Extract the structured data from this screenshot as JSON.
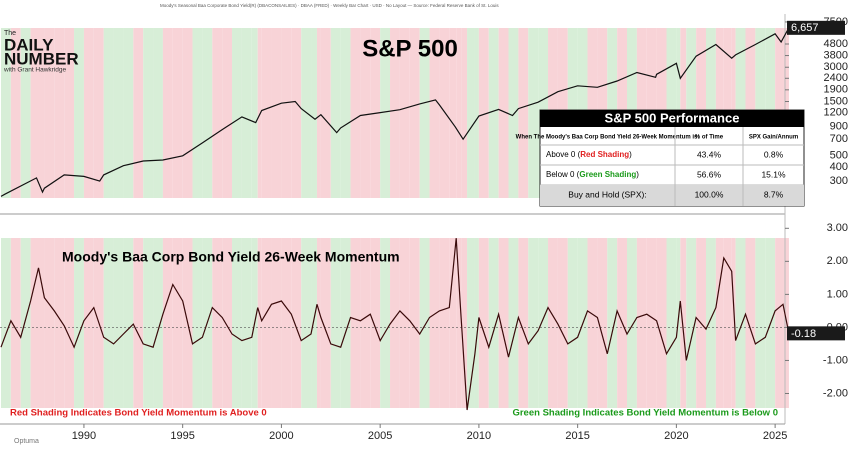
{
  "header": {
    "source": "Moody's Seasonal Baa Corporate Bond Yield(R) (DBACONSAILIES) · DBAA (FRED) · Weekly Bar Chart · USD · No Layout — Source: Federal Reserve Bank of St. Louis"
  },
  "logo": {
    "top": "The",
    "line1": "DAILY",
    "line2": "NUMBER",
    "tagline": "with Grant Hawkridge"
  },
  "watermark": "Optuma",
  "table": {
    "title": "S&P 500 Performance",
    "columns": [
      "When The Moody's Baa Corp Bond Yield 26-Week Momentum is:",
      "% of Time",
      "SPX Gain/Annum"
    ],
    "rows": [
      [
        {
          "pre": "Above 0 (",
          "hl": "Red Shading",
          "post": ")"
        },
        "43.4%",
        "0.8%"
      ],
      [
        {
          "pre": "Below 0 (",
          "hl": "Green Shading",
          "post": ")"
        },
        "56.6%",
        "15.1%"
      ],
      [
        "Buy and Hold (SPX):",
        "100.0%",
        "8.7%"
      ]
    ]
  },
  "chart_data": [
    {
      "type": "line",
      "title": "S&P 500",
      "log_scale": true,
      "xlim": [
        1985.75,
        2025.5
      ],
      "ylim": [
        185,
        7800
      ],
      "yticks": [
        7500,
        4800,
        3800,
        3000,
        2400,
        1900,
        1500,
        1200,
        900,
        700,
        500,
        400,
        300
      ],
      "series": [
        {
          "name": "S&P 500",
          "color": "#111111",
          "x": [
            1985.8,
            1986,
            1987.6,
            1987.9,
            1988,
            1989,
            1990,
            1990.8,
            1991,
            1992,
            1993,
            1994,
            1995,
            1996,
            1997,
            1998,
            1998.7,
            1999,
            2000,
            2000.7,
            2001,
            2001.7,
            2002,
            2002.8,
            2003,
            2004,
            2005,
            2006,
            2007,
            2007.8,
            2008,
            2008.8,
            2009.2,
            2010,
            2011,
            2011.7,
            2012,
            2013,
            2014,
            2015,
            2016,
            2017,
            2018,
            2018.95,
            2019,
            2020,
            2020.2,
            2021,
            2022,
            2022.8,
            2023,
            2024,
            2025,
            2025.3,
            2025.7
          ],
          "values": [
            220,
            230,
            320,
            240,
            260,
            340,
            330,
            300,
            340,
            410,
            450,
            460,
            500,
            650,
            850,
            1100,
            980,
            1250,
            1450,
            1500,
            1300,
            1050,
            1150,
            800,
            880,
            1130,
            1200,
            1270,
            1430,
            1550,
            1400,
            900,
            700,
            1120,
            1280,
            1130,
            1300,
            1480,
            1830,
            2060,
            2000,
            2270,
            2700,
            2450,
            2600,
            3250,
            2400,
            3750,
            4750,
            3600,
            3850,
            4750,
            5900,
            5000,
            6657
          ],
          "value_labels": [
            null,
            null,
            null,
            null,
            null,
            null,
            null,
            null,
            null,
            null,
            null,
            null,
            null,
            null,
            null,
            null,
            null,
            null,
            null,
            null,
            null,
            null,
            null,
            null,
            null,
            null,
            null,
            null,
            null,
            null,
            null,
            null,
            null,
            null,
            null,
            null,
            null,
            null,
            null,
            null,
            null,
            null,
            null,
            null,
            null,
            null,
            null,
            null,
            null,
            null,
            null,
            null,
            null,
            null,
            "6,657"
          ]
        }
      ]
    },
    {
      "type": "line",
      "title": "Moody's Baa Corp Bond Yield 26-Week Momentum",
      "xlim": [
        1985.75,
        2025.5
      ],
      "ylim": [
        -2.5,
        3.1
      ],
      "shade_above": "#f8d3d7",
      "shade_below": "#d7eed7",
      "annotations": [
        {
          "text": "Red Shading Indicates Bond Yield Momentum is Above 0",
          "color": "#e02020"
        },
        {
          "text": "Green Shading Indicates Bond Yield Momentum is Below 0",
          "color": "#1a9a1a"
        }
      ],
      "xticks": [
        1990,
        1995,
        2000,
        2005,
        2010,
        2015,
        2020,
        2025
      ],
      "yticks": [
        {
          "value": 3,
          "label": "3.00"
        },
        {
          "value": 2,
          "label": "2.00"
        },
        {
          "value": 1,
          "label": "1.00"
        },
        {
          "value": 0,
          "label": "0.00"
        },
        {
          "value": -1,
          "label": "-1.00"
        },
        {
          "value": -2,
          "label": "-2.00"
        }
      ],
      "series": [
        {
          "name": "Momentum",
          "color": "#3a0a0a",
          "x": [
            1985.8,
            1986.3,
            1986.8,
            1987.3,
            1987.7,
            1988,
            1988.5,
            1989,
            1989.5,
            1990,
            1990.5,
            1991,
            1991.5,
            1992,
            1992.5,
            1993,
            1993.5,
            1994,
            1994.5,
            1995,
            1995.5,
            1996,
            1996.5,
            1997,
            1997.5,
            1998,
            1998.5,
            1998.8,
            1999,
            1999.5,
            2000,
            2000.5,
            2001,
            2001.5,
            2001.8,
            2002,
            2002.5,
            2003,
            2003.5,
            2004,
            2004.5,
            2005,
            2005.5,
            2006,
            2006.5,
            2007,
            2007.5,
            2008,
            2008.5,
            2008.85,
            2009.1,
            2009.4,
            2009.8,
            2010,
            2010.5,
            2011,
            2011.5,
            2012,
            2012.5,
            2013,
            2013.5,
            2014,
            2014.5,
            2015,
            2015.5,
            2016,
            2016.5,
            2017,
            2017.5,
            2018,
            2018.5,
            2019,
            2019.5,
            2020,
            2020.2,
            2020.5,
            2021,
            2021.5,
            2022,
            2022.4,
            2022.8,
            2023,
            2023.5,
            2024,
            2024.5,
            2025,
            2025.4,
            2025.7
          ],
          "values": [
            -0.6,
            0.2,
            -0.3,
            0.8,
            1.8,
            0.9,
            0.5,
            0.05,
            -0.6,
            0.2,
            0.6,
            -0.3,
            -0.5,
            -0.2,
            0.1,
            -0.5,
            -0.6,
            0.4,
            1.3,
            0.8,
            -0.5,
            -0.3,
            0.6,
            0.3,
            -0.2,
            -0.4,
            -0.3,
            0.6,
            0.2,
            0.7,
            0.8,
            0.4,
            -0.4,
            -0.2,
            0.7,
            0.3,
            -0.5,
            -0.6,
            0.3,
            0.2,
            0.4,
            -0.4,
            0.1,
            0.5,
            0.2,
            -0.2,
            0.3,
            0.5,
            0.6,
            2.7,
            0.3,
            -2.5,
            -0.8,
            0.3,
            -0.6,
            0.4,
            -0.9,
            0.3,
            -0.5,
            -0.1,
            0.6,
            0.1,
            -0.5,
            -0.3,
            0.5,
            0.3,
            -0.8,
            0.5,
            -0.2,
            0.3,
            0.4,
            0.2,
            -0.8,
            -0.3,
            0.8,
            -1.0,
            0.3,
            -0.05,
            0.6,
            2.1,
            1.7,
            -0.4,
            0.4,
            -0.5,
            -0.3,
            0.5,
            0.7,
            -0.18
          ]
        }
      ]
    }
  ]
}
